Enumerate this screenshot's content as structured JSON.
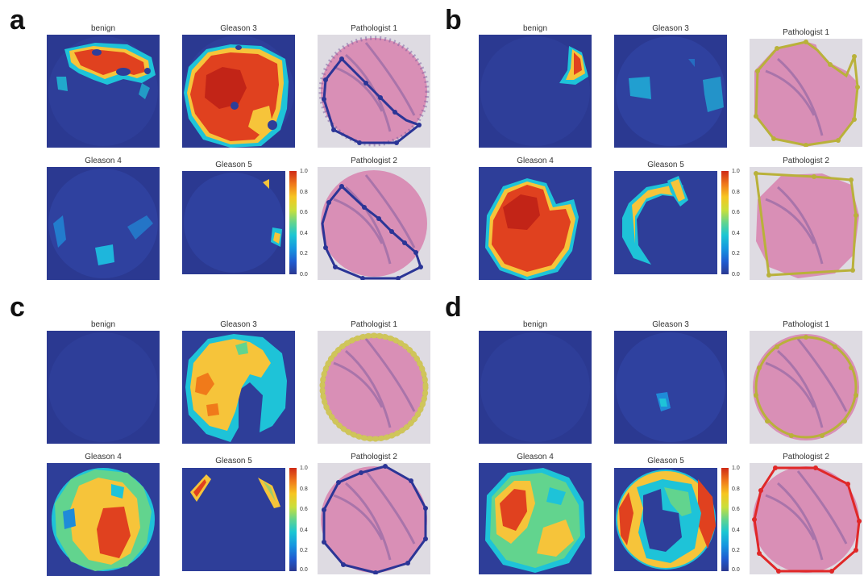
{
  "panels": [
    {
      "letter": "a",
      "heatmaps": [
        "benign",
        "Gleason 3",
        "Gleason 4",
        "Gleason 5"
      ],
      "pathologists": [
        "Pathologist 1",
        "Pathologist 2"
      ],
      "annotation_color": "#2b3596"
    },
    {
      "letter": "b",
      "heatmaps": [
        "benign",
        "Gleason 3",
        "Gleason 4",
        "Gleason 5"
      ],
      "pathologists": [
        "Pathologist 1",
        "Pathologist 2"
      ],
      "annotation_color": "#b9b13a"
    },
    {
      "letter": "c",
      "heatmaps": [
        "benign",
        "Gleason 3",
        "Gleason 4",
        "Gleason 5"
      ],
      "pathologists": [
        "Pathologist 1",
        "Pathologist 2"
      ],
      "annotation_color": "#2b3596"
    },
    {
      "letter": "d",
      "heatmaps": [
        "benign",
        "Gleason 3",
        "Gleason 4",
        "Gleason 5"
      ],
      "pathologists": [
        "Pathologist 1",
        "Pathologist 2"
      ],
      "annotation_color": "#e02828"
    }
  ],
  "colorbar": {
    "ticks": [
      "0.0",
      "0.2",
      "0.4",
      "0.6",
      "0.8",
      "1.0"
    ],
    "colormap": "jet",
    "range": [
      0,
      1
    ]
  },
  "colors": {
    "background_low": "#2b3991",
    "tissue_pink": "#d98fb6",
    "tissue_purple": "#7a5a9e"
  }
}
